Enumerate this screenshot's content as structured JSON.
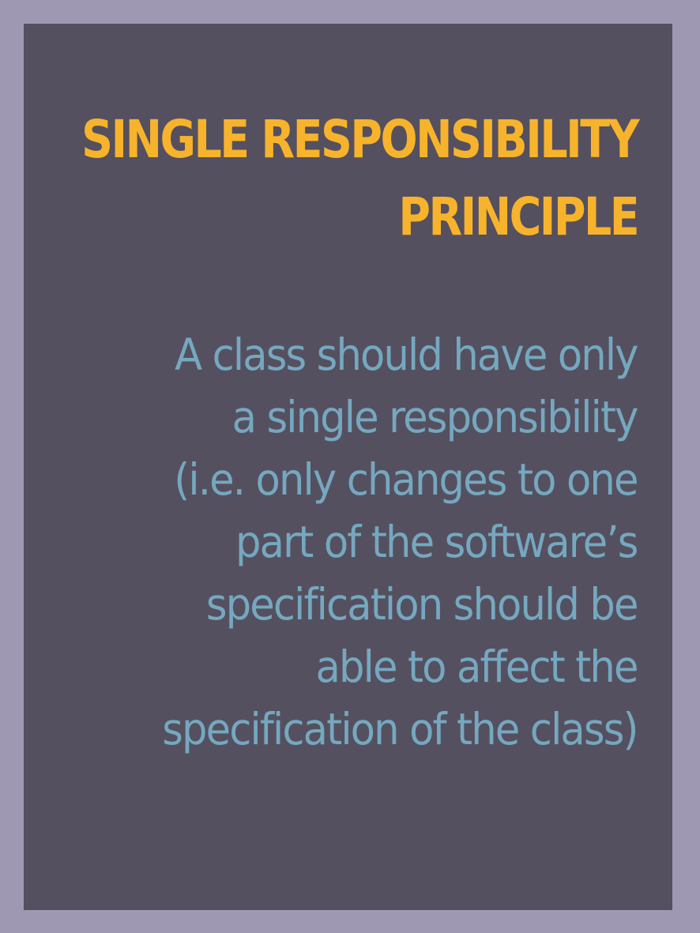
{
  "slide": {
    "title_lines": [
      "SINGLE RESPONSIBILITY",
      "PRINCIPLE"
    ],
    "body_lines": [
      "A class should have only",
      "a single responsibility",
      "(i.e. only changes to one",
      "part of the software’s",
      "specification should be",
      "able to affect the",
      "specification of the class)"
    ]
  },
  "colors": {
    "background": "#9f98b2",
    "card": "#55505f",
    "title": "#f7b32b",
    "body": "#75a8c0"
  }
}
